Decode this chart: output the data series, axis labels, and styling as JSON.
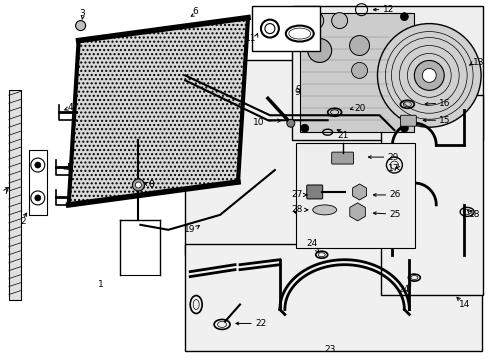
{
  "bg_color": "#ffffff",
  "fig_width": 4.89,
  "fig_height": 3.6,
  "dpi": 100,
  "line_color": "#000000",
  "label_fontsize": 6.5
}
